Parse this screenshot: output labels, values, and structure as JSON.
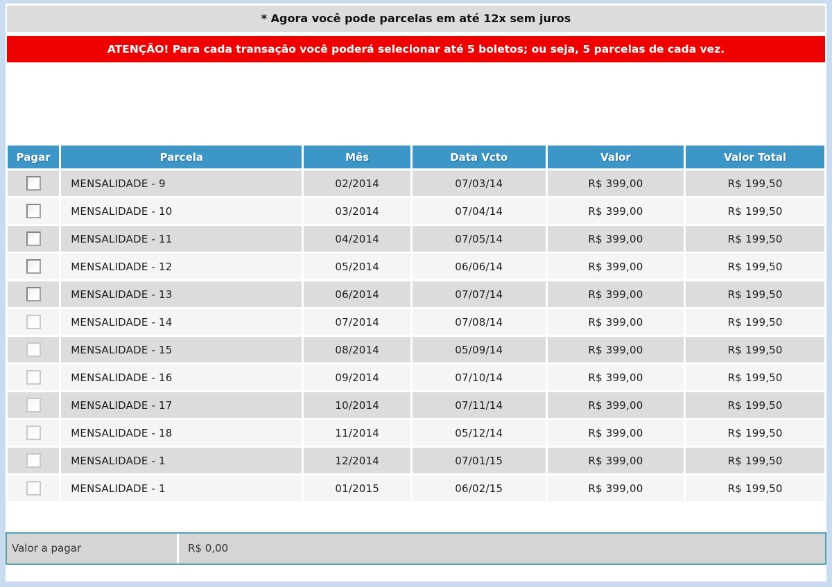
{
  "banners": {
    "info": "* Agora você pode parcelas em até 12x sem juros",
    "warning": "ATENÇÃO! Para cada transação você poderá selecionar até 5 boletos; ou seja, 5 parcelas de cada vez."
  },
  "colors": {
    "frame_blue": "#c9dcef",
    "bar_gray": "#dcdcdc",
    "banner_red": "#ee0000",
    "header_blue": "#3c96c8",
    "row_dark": "#dcdcdc",
    "row_light": "#f5f5f5",
    "summary_border": "#4fa6b6",
    "summary_bg": "#d6d5d3"
  },
  "table": {
    "columns": [
      "Pagar",
      "Parcela",
      "Mês",
      "Data Vcto",
      "Valor",
      "Valor Total"
    ],
    "rows": [
      {
        "parcela": "MENSALIDADE - 9",
        "mes": "02/2014",
        "data_vcto": "07/03/14",
        "valor": "R$ 399,00",
        "valor_total": "R$ 199,50",
        "checked": false,
        "checkbox_enabled": true
      },
      {
        "parcela": "MENSALIDADE - 10",
        "mes": "03/2014",
        "data_vcto": "07/04/14",
        "valor": "R$ 399,00",
        "valor_total": "R$ 199,50",
        "checked": false,
        "checkbox_enabled": true
      },
      {
        "parcela": "MENSALIDADE - 11",
        "mes": "04/2014",
        "data_vcto": "07/05/14",
        "valor": "R$ 399,00",
        "valor_total": "R$ 199,50",
        "checked": false,
        "checkbox_enabled": true
      },
      {
        "parcela": "MENSALIDADE - 12",
        "mes": "05/2014",
        "data_vcto": "06/06/14",
        "valor": "R$ 399,00",
        "valor_total": "R$ 199,50",
        "checked": false,
        "checkbox_enabled": true
      },
      {
        "parcela": "MENSALIDADE - 13",
        "mes": "06/2014",
        "data_vcto": "07/07/14",
        "valor": "R$ 399,00",
        "valor_total": "R$ 199,50",
        "checked": false,
        "checkbox_enabled": true
      },
      {
        "parcela": "MENSALIDADE - 14",
        "mes": "07/2014",
        "data_vcto": "07/08/14",
        "valor": "R$ 399,00",
        "valor_total": "R$ 199,50",
        "checked": false,
        "checkbox_enabled": false
      },
      {
        "parcela": "MENSALIDADE - 15",
        "mes": "08/2014",
        "data_vcto": "05/09/14",
        "valor": "R$ 399,00",
        "valor_total": "R$ 199,50",
        "checked": false,
        "checkbox_enabled": false
      },
      {
        "parcela": "MENSALIDADE - 16",
        "mes": "09/2014",
        "data_vcto": "07/10/14",
        "valor": "R$ 399,00",
        "valor_total": "R$ 199,50",
        "checked": false,
        "checkbox_enabled": false
      },
      {
        "parcela": "MENSALIDADE - 17",
        "mes": "10/2014",
        "data_vcto": "07/11/14",
        "valor": "R$ 399,00",
        "valor_total": "R$ 199,50",
        "checked": false,
        "checkbox_enabled": false
      },
      {
        "parcela": "MENSALIDADE - 18",
        "mes": "11/2014",
        "data_vcto": "05/12/14",
        "valor": "R$ 399,00",
        "valor_total": "R$ 199,50",
        "checked": false,
        "checkbox_enabled": false
      },
      {
        "parcela": "MENSALIDADE - 1",
        "mes": "12/2014",
        "data_vcto": "07/01/15",
        "valor": "R$ 399,00",
        "valor_total": "R$ 199,50",
        "checked": false,
        "checkbox_enabled": false
      },
      {
        "parcela": "MENSALIDADE - 1",
        "mes": "01/2015",
        "data_vcto": "06/02/15",
        "valor": "R$ 399,00",
        "valor_total": "R$ 199,50",
        "checked": false,
        "checkbox_enabled": false
      }
    ]
  },
  "summary": {
    "label": "Valor a pagar",
    "value": "R$ 0,00"
  }
}
